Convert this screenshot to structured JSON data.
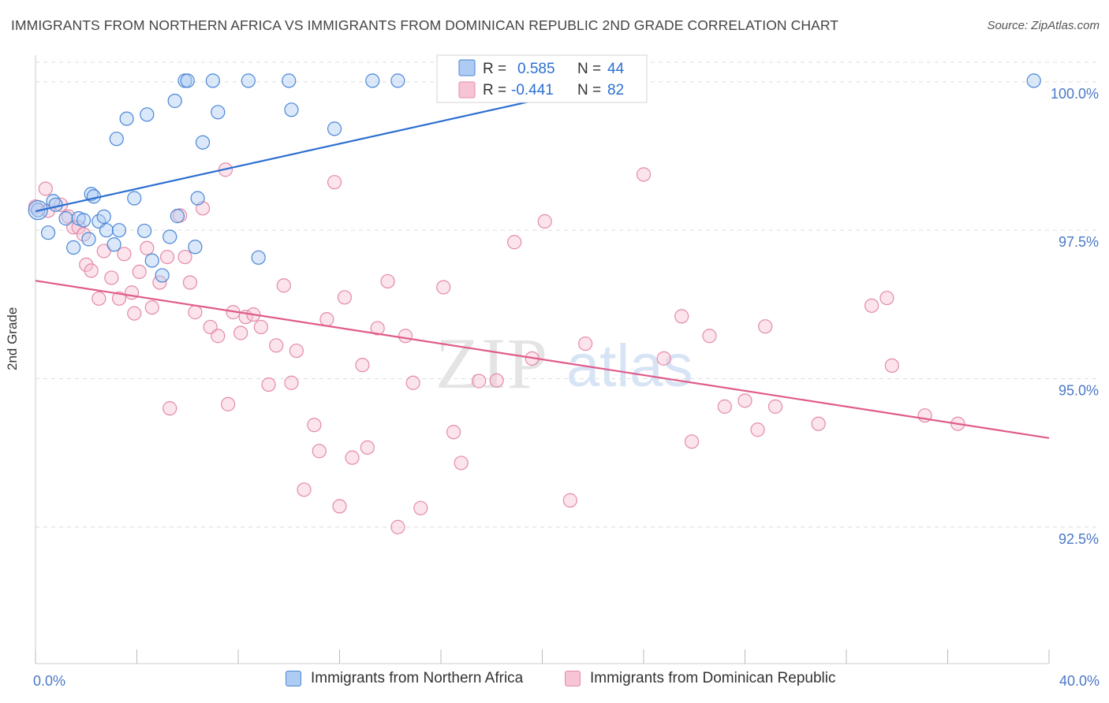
{
  "header": {
    "title": "IMMIGRANTS FROM NORTHERN AFRICA VS IMMIGRANTS FROM DOMINICAN REPUBLIC 2ND GRADE CORRELATION CHART",
    "source": "Source: ZipAtlas.com"
  },
  "watermark": {
    "zip": "ZIP",
    "atlas": "atlas"
  },
  "colors": {
    "blue_fill": "#aecbf3",
    "blue_stroke": "#4a86d6",
    "blue_line": "#2c6fd1",
    "pink_fill": "#f6c4d4",
    "pink_stroke": "#e48aa8",
    "pink_line": "#e05b8a",
    "tick_text": "#4a78c8",
    "grid": "#dddddd"
  },
  "stats_box": {
    "rows": [
      {
        "r_label": "R =",
        "r_value": "0.585",
        "n_label": "N =",
        "n_value": "44"
      },
      {
        "r_label": "R =",
        "r_value": "-0.441",
        "n_label": "N =",
        "n_value": "82"
      }
    ]
  },
  "legend": {
    "items": [
      {
        "label": "Immigrants from Northern Africa"
      },
      {
        "label": "Immigrants from Dominican Republic"
      }
    ]
  },
  "chart_data": {
    "type": "scatter",
    "title": "IMMIGRANTS FROM NORTHERN AFRICA VS IMMIGRANTS FROM DOMINICAN REPUBLIC 2ND GRADE CORRELATION CHART",
    "xlabel": "",
    "ylabel": "2nd Grade",
    "xlim": [
      0,
      40
    ],
    "ylim": [
      90.2,
      100.45
    ],
    "x_tick_labels": [
      "0.0%",
      "40.0%"
    ],
    "y_ticks": [
      {
        "value": 92.5,
        "label": "92.5%"
      },
      {
        "value": 95.0,
        "label": "95.0%"
      },
      {
        "value": 97.5,
        "label": "97.5%"
      },
      {
        "value": 100.0,
        "label": "100.0%"
      }
    ],
    "grid": "horizontal dashed",
    "legend_position": "bottom",
    "series": [
      {
        "name": "Immigrants from Northern Africa",
        "trend": {
          "x0": 0,
          "y0": 97.82,
          "x1": 23.0,
          "y1": 100.0
        },
        "points": [
          [
            0.1,
            97.84
          ],
          [
            0.5,
            97.46
          ],
          [
            0.7,
            97.99
          ],
          [
            0.8,
            97.93
          ],
          [
            1.2,
            97.7
          ],
          [
            1.5,
            97.21
          ],
          [
            1.7,
            97.7
          ],
          [
            1.9,
            97.67
          ],
          [
            2.1,
            97.35
          ],
          [
            2.2,
            98.11
          ],
          [
            2.3,
            98.07
          ],
          [
            2.5,
            97.65
          ],
          [
            2.7,
            97.73
          ],
          [
            2.8,
            97.5
          ],
          [
            3.1,
            97.26
          ],
          [
            3.2,
            99.04
          ],
          [
            3.3,
            97.5
          ],
          [
            3.6,
            99.38
          ],
          [
            3.9,
            98.04
          ],
          [
            4.3,
            97.49
          ],
          [
            4.4,
            99.45
          ],
          [
            4.6,
            96.99
          ],
          [
            5.0,
            96.74
          ],
          [
            5.3,
            97.39
          ],
          [
            5.5,
            99.68
          ],
          [
            5.6,
            97.74
          ],
          [
            5.9,
            100.02
          ],
          [
            6.0,
            100.02
          ],
          [
            6.3,
            97.22
          ],
          [
            6.4,
            98.04
          ],
          [
            6.6,
            98.98
          ],
          [
            7.0,
            100.02
          ],
          [
            7.2,
            99.49
          ],
          [
            8.4,
            100.02
          ],
          [
            8.8,
            97.04
          ],
          [
            10.0,
            100.02
          ],
          [
            10.1,
            99.53
          ],
          [
            11.8,
            99.21
          ],
          [
            13.3,
            100.02
          ],
          [
            14.3,
            100.02
          ],
          [
            19.4,
            100.02
          ],
          [
            20.5,
            100.02
          ],
          [
            22.5,
            100.02
          ],
          [
            39.4,
            100.02
          ]
        ]
      },
      {
        "name": "Immigrants from Dominican Republic",
        "trend": {
          "x0": 0,
          "y0": 96.65,
          "x1": 40.0,
          "y1": 94.0
        },
        "points": [
          [
            0.0,
            97.9
          ],
          [
            0.4,
            98.2
          ],
          [
            0.5,
            97.83
          ],
          [
            1.0,
            97.93
          ],
          [
            1.3,
            97.73
          ],
          [
            1.5,
            97.55
          ],
          [
            1.7,
            97.55
          ],
          [
            1.9,
            97.43
          ],
          [
            2.0,
            96.92
          ],
          [
            2.2,
            96.82
          ],
          [
            2.5,
            96.35
          ],
          [
            2.7,
            97.15
          ],
          [
            3.0,
            96.7
          ],
          [
            3.3,
            96.35
          ],
          [
            3.5,
            97.1
          ],
          [
            3.8,
            96.45
          ],
          [
            3.9,
            96.1
          ],
          [
            4.1,
            96.8
          ],
          [
            4.4,
            97.2
          ],
          [
            4.6,
            96.2
          ],
          [
            4.9,
            96.62
          ],
          [
            5.2,
            97.05
          ],
          [
            5.3,
            94.5
          ],
          [
            5.7,
            97.75
          ],
          [
            5.9,
            97.05
          ],
          [
            6.1,
            96.62
          ],
          [
            6.3,
            96.12
          ],
          [
            6.6,
            97.87
          ],
          [
            6.9,
            95.87
          ],
          [
            7.2,
            95.72
          ],
          [
            7.5,
            98.52
          ],
          [
            7.6,
            94.57
          ],
          [
            7.8,
            96.12
          ],
          [
            8.1,
            95.77
          ],
          [
            8.3,
            96.04
          ],
          [
            8.6,
            96.08
          ],
          [
            8.9,
            95.87
          ],
          [
            9.2,
            94.9
          ],
          [
            9.5,
            95.56
          ],
          [
            9.8,
            96.57
          ],
          [
            10.1,
            94.93
          ],
          [
            10.3,
            95.47
          ],
          [
            10.6,
            93.13
          ],
          [
            11.0,
            94.22
          ],
          [
            11.2,
            93.78
          ],
          [
            11.5,
            96.0
          ],
          [
            11.8,
            98.31
          ],
          [
            12.0,
            92.85
          ],
          [
            12.2,
            96.37
          ],
          [
            12.5,
            93.67
          ],
          [
            12.9,
            95.23
          ],
          [
            13.1,
            93.84
          ],
          [
            13.5,
            95.85
          ],
          [
            13.9,
            96.64
          ],
          [
            14.3,
            92.5
          ],
          [
            14.6,
            95.72
          ],
          [
            14.9,
            94.93
          ],
          [
            15.2,
            92.82
          ],
          [
            16.1,
            96.54
          ],
          [
            16.5,
            94.1
          ],
          [
            16.8,
            93.58
          ],
          [
            17.5,
            94.96
          ],
          [
            18.2,
            94.97
          ],
          [
            18.9,
            97.3
          ],
          [
            19.6,
            95.34
          ],
          [
            20.1,
            97.65
          ],
          [
            21.1,
            92.95
          ],
          [
            21.7,
            95.59
          ],
          [
            24.0,
            98.44
          ],
          [
            24.8,
            95.34
          ],
          [
            25.5,
            96.05
          ],
          [
            25.9,
            93.94
          ],
          [
            26.6,
            95.72
          ],
          [
            27.2,
            94.53
          ],
          [
            28.0,
            94.63
          ],
          [
            28.5,
            94.14
          ],
          [
            28.8,
            95.88
          ],
          [
            29.2,
            94.53
          ],
          [
            30.9,
            94.24
          ],
          [
            33.0,
            96.23
          ],
          [
            33.6,
            96.36
          ],
          [
            33.8,
            95.22
          ],
          [
            35.1,
            94.38
          ],
          [
            36.4,
            94.24
          ]
        ]
      }
    ]
  }
}
